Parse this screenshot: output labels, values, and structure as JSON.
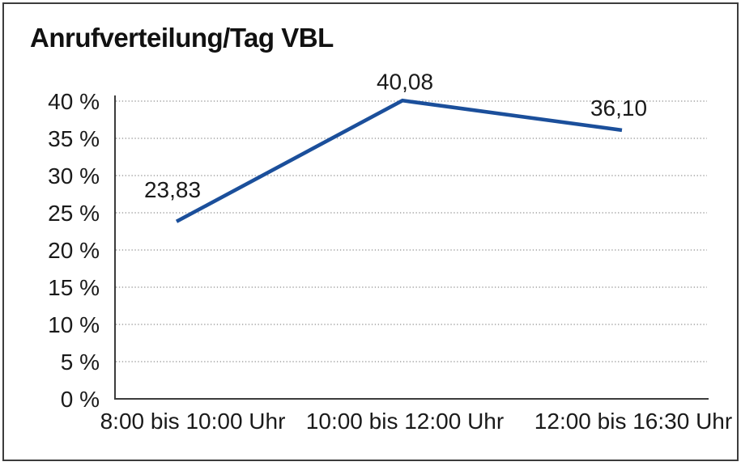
{
  "chart_data": {
    "type": "line",
    "title": "Anrufverteilung/Tag VBL",
    "categories": [
      "8:00 bis 10:00 Uhr",
      "10:00 bis 12:00 Uhr",
      "12:00 bis 16:30 Uhr"
    ],
    "values": [
      23.83,
      40.08,
      36.1
    ],
    "data_labels": [
      "23,83",
      "40,08",
      "36,10"
    ],
    "xlabel": "",
    "ylabel": "",
    "ylim": [
      0,
      40
    ],
    "y_ticks": [
      0,
      5,
      10,
      15,
      20,
      25,
      30,
      35,
      40
    ],
    "y_tick_suffix": " %",
    "grid": "horizontal-dotted",
    "legend": "none",
    "colors": {
      "line": "#1B4F9B",
      "axis": "#3c3c3c",
      "gridline": "#8f8f8f",
      "text": "#1a1a1a"
    }
  }
}
